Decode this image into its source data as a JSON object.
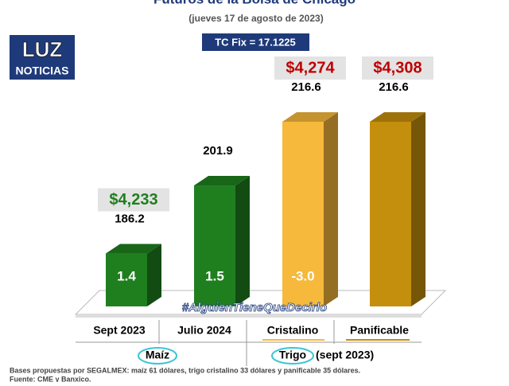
{
  "chart_data": {
    "type": "bar3d",
    "title": "Futuros de la Bolsa de Chicago",
    "subtitle": "(jueves 17 de agosto de 2023)",
    "exchange_rate": "TC Fix = 17.1225",
    "logo": [
      "LUZ",
      "NOTICIAS"
    ],
    "categories": [
      "Sept 2023",
      "Julio 2024",
      "Cristalino",
      "Panificable"
    ],
    "values": [
      186.2,
      201.9,
      216.6,
      216.6
    ],
    "colors": [
      "#1f7f1f",
      "#1f7f1f",
      "#f6b93b",
      "#c48f0c"
    ],
    "price_labels": [
      "$4,233",
      null,
      "$4,274",
      "$4,308"
    ],
    "price_colors": [
      "#1f7f1f",
      null,
      "#c00000",
      "#c00000"
    ],
    "change_labels": [
      "1.4",
      "1.5",
      "-3.0",
      null
    ],
    "groups": [
      {
        "label": "Maíz",
        "extra": null
      },
      {
        "label": "Trigo",
        "extra": "(sept 2023)"
      }
    ],
    "ylim": [
      174,
      230
    ],
    "hashtag": "#AlguienTieneQueDecirlo",
    "notes": [
      "Bases propuestas por SEGALMEX: maíz 61 dólares, trigo cristalino 33 dólares y panificable 35 dólares.",
      "Fuente: CME y Banxico."
    ]
  }
}
